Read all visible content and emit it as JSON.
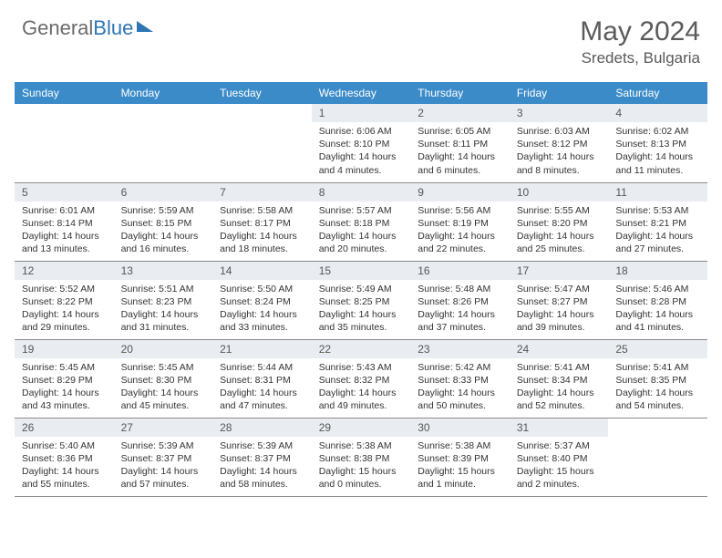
{
  "brand": {
    "name_gray": "General",
    "name_blue": "Blue"
  },
  "title": "May 2024",
  "location": "Sredets, Bulgaria",
  "colors": {
    "header_bg": "#3b8bc9",
    "daynum_bg": "#e9edf2",
    "rule": "#8a8a8a",
    "text": "#333333",
    "title_text": "#5a5a5a",
    "brand_gray": "#6a6a6a",
    "brand_blue": "#2e75b6"
  },
  "day_names": [
    "Sunday",
    "Monday",
    "Tuesday",
    "Wednesday",
    "Thursday",
    "Friday",
    "Saturday"
  ],
  "weeks": [
    [
      {
        "n": "",
        "sr": "",
        "ss": "",
        "dl": ""
      },
      {
        "n": "",
        "sr": "",
        "ss": "",
        "dl": ""
      },
      {
        "n": "",
        "sr": "",
        "ss": "",
        "dl": ""
      },
      {
        "n": "1",
        "sr": "Sunrise: 6:06 AM",
        "ss": "Sunset: 8:10 PM",
        "dl": "Daylight: 14 hours and 4 minutes."
      },
      {
        "n": "2",
        "sr": "Sunrise: 6:05 AM",
        "ss": "Sunset: 8:11 PM",
        "dl": "Daylight: 14 hours and 6 minutes."
      },
      {
        "n": "3",
        "sr": "Sunrise: 6:03 AM",
        "ss": "Sunset: 8:12 PM",
        "dl": "Daylight: 14 hours and 8 minutes."
      },
      {
        "n": "4",
        "sr": "Sunrise: 6:02 AM",
        "ss": "Sunset: 8:13 PM",
        "dl": "Daylight: 14 hours and 11 minutes."
      }
    ],
    [
      {
        "n": "5",
        "sr": "Sunrise: 6:01 AM",
        "ss": "Sunset: 8:14 PM",
        "dl": "Daylight: 14 hours and 13 minutes."
      },
      {
        "n": "6",
        "sr": "Sunrise: 5:59 AM",
        "ss": "Sunset: 8:15 PM",
        "dl": "Daylight: 14 hours and 16 minutes."
      },
      {
        "n": "7",
        "sr": "Sunrise: 5:58 AM",
        "ss": "Sunset: 8:17 PM",
        "dl": "Daylight: 14 hours and 18 minutes."
      },
      {
        "n": "8",
        "sr": "Sunrise: 5:57 AM",
        "ss": "Sunset: 8:18 PM",
        "dl": "Daylight: 14 hours and 20 minutes."
      },
      {
        "n": "9",
        "sr": "Sunrise: 5:56 AM",
        "ss": "Sunset: 8:19 PM",
        "dl": "Daylight: 14 hours and 22 minutes."
      },
      {
        "n": "10",
        "sr": "Sunrise: 5:55 AM",
        "ss": "Sunset: 8:20 PM",
        "dl": "Daylight: 14 hours and 25 minutes."
      },
      {
        "n": "11",
        "sr": "Sunrise: 5:53 AM",
        "ss": "Sunset: 8:21 PM",
        "dl": "Daylight: 14 hours and 27 minutes."
      }
    ],
    [
      {
        "n": "12",
        "sr": "Sunrise: 5:52 AM",
        "ss": "Sunset: 8:22 PM",
        "dl": "Daylight: 14 hours and 29 minutes."
      },
      {
        "n": "13",
        "sr": "Sunrise: 5:51 AM",
        "ss": "Sunset: 8:23 PM",
        "dl": "Daylight: 14 hours and 31 minutes."
      },
      {
        "n": "14",
        "sr": "Sunrise: 5:50 AM",
        "ss": "Sunset: 8:24 PM",
        "dl": "Daylight: 14 hours and 33 minutes."
      },
      {
        "n": "15",
        "sr": "Sunrise: 5:49 AM",
        "ss": "Sunset: 8:25 PM",
        "dl": "Daylight: 14 hours and 35 minutes."
      },
      {
        "n": "16",
        "sr": "Sunrise: 5:48 AM",
        "ss": "Sunset: 8:26 PM",
        "dl": "Daylight: 14 hours and 37 minutes."
      },
      {
        "n": "17",
        "sr": "Sunrise: 5:47 AM",
        "ss": "Sunset: 8:27 PM",
        "dl": "Daylight: 14 hours and 39 minutes."
      },
      {
        "n": "18",
        "sr": "Sunrise: 5:46 AM",
        "ss": "Sunset: 8:28 PM",
        "dl": "Daylight: 14 hours and 41 minutes."
      }
    ],
    [
      {
        "n": "19",
        "sr": "Sunrise: 5:45 AM",
        "ss": "Sunset: 8:29 PM",
        "dl": "Daylight: 14 hours and 43 minutes."
      },
      {
        "n": "20",
        "sr": "Sunrise: 5:45 AM",
        "ss": "Sunset: 8:30 PM",
        "dl": "Daylight: 14 hours and 45 minutes."
      },
      {
        "n": "21",
        "sr": "Sunrise: 5:44 AM",
        "ss": "Sunset: 8:31 PM",
        "dl": "Daylight: 14 hours and 47 minutes."
      },
      {
        "n": "22",
        "sr": "Sunrise: 5:43 AM",
        "ss": "Sunset: 8:32 PM",
        "dl": "Daylight: 14 hours and 49 minutes."
      },
      {
        "n": "23",
        "sr": "Sunrise: 5:42 AM",
        "ss": "Sunset: 8:33 PM",
        "dl": "Daylight: 14 hours and 50 minutes."
      },
      {
        "n": "24",
        "sr": "Sunrise: 5:41 AM",
        "ss": "Sunset: 8:34 PM",
        "dl": "Daylight: 14 hours and 52 minutes."
      },
      {
        "n": "25",
        "sr": "Sunrise: 5:41 AM",
        "ss": "Sunset: 8:35 PM",
        "dl": "Daylight: 14 hours and 54 minutes."
      }
    ],
    [
      {
        "n": "26",
        "sr": "Sunrise: 5:40 AM",
        "ss": "Sunset: 8:36 PM",
        "dl": "Daylight: 14 hours and 55 minutes."
      },
      {
        "n": "27",
        "sr": "Sunrise: 5:39 AM",
        "ss": "Sunset: 8:37 PM",
        "dl": "Daylight: 14 hours and 57 minutes."
      },
      {
        "n": "28",
        "sr": "Sunrise: 5:39 AM",
        "ss": "Sunset: 8:37 PM",
        "dl": "Daylight: 14 hours and 58 minutes."
      },
      {
        "n": "29",
        "sr": "Sunrise: 5:38 AM",
        "ss": "Sunset: 8:38 PM",
        "dl": "Daylight: 15 hours and 0 minutes."
      },
      {
        "n": "30",
        "sr": "Sunrise: 5:38 AM",
        "ss": "Sunset: 8:39 PM",
        "dl": "Daylight: 15 hours and 1 minute."
      },
      {
        "n": "31",
        "sr": "Sunrise: 5:37 AM",
        "ss": "Sunset: 8:40 PM",
        "dl": "Daylight: 15 hours and 2 minutes."
      },
      {
        "n": "",
        "sr": "",
        "ss": "",
        "dl": ""
      }
    ]
  ]
}
